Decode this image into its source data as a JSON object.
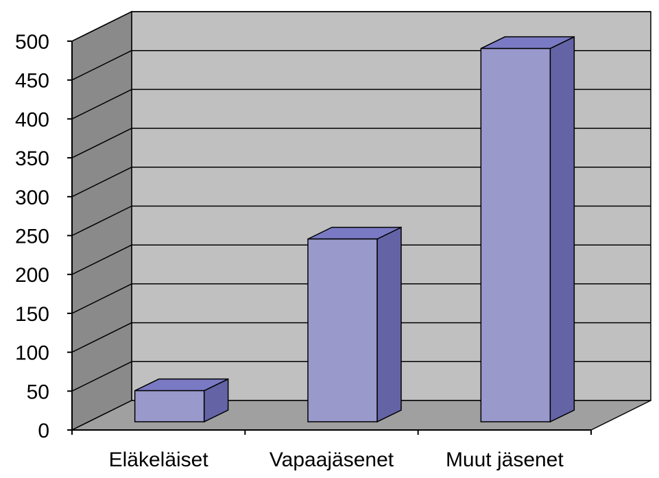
{
  "chart_data": {
    "type": "bar",
    "style": "3d-column",
    "title": "",
    "xlabel": "",
    "ylabel": "",
    "categories": [
      "Eläkeläiset",
      "Vapaajäsenet",
      "Muut jäsenet"
    ],
    "values": [
      40,
      235,
      480
    ],
    "ylim": [
      0,
      500
    ],
    "yticks": [
      "0",
      "50",
      "100",
      "150",
      "200",
      "250",
      "300",
      "350",
      "400",
      "450",
      "500"
    ],
    "grid": true,
    "legend": "none",
    "colors": {
      "bar_front": "#9999cc",
      "bar_side": "#6363a6",
      "bar_top": "#7a7ac4",
      "back_wall": "#c0c0c0",
      "side_wall": "#8a8a8a",
      "floor": "#a0a0a0",
      "gridline": "#000000"
    }
  }
}
